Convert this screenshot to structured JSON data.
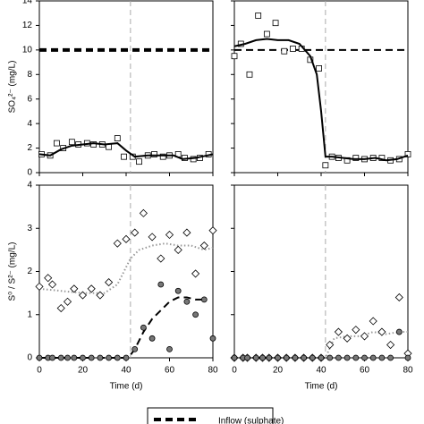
{
  "chart_data": [
    {
      "type": "scatter",
      "xlim": [
        0,
        80
      ],
      "xticks": [
        0,
        20,
        40,
        60,
        80
      ],
      "ylim": [
        0,
        14
      ],
      "yticks": [
        0,
        2,
        4,
        6,
        8,
        10,
        12,
        14
      ],
      "ylabel": "SO₄²⁻ (mg/L)",
      "vline": 42,
      "show_xticklabels": false,
      "show_yticklabels": true,
      "series": [
        {
          "kind": "line",
          "dash": "dashed",
          "color": "#000",
          "name": "Inflow (sulphate)",
          "x": [
            0,
            80
          ],
          "values": [
            10,
            10
          ]
        },
        {
          "kind": "scatter",
          "marker": "square",
          "color": "#fff",
          "x": [
            1,
            5,
            8,
            11,
            15,
            18,
            22,
            25,
            29,
            32,
            36,
            39,
            43,
            46,
            50,
            53,
            57,
            60,
            64,
            67,
            71,
            74,
            78
          ],
          "values": [
            1.5,
            1.4,
            2.4,
            2.0,
            2.5,
            2.3,
            2.4,
            2.3,
            2.3,
            2.1,
            2.8,
            1.3,
            1.3,
            0.9,
            1.4,
            1.5,
            1.3,
            1.4,
            1.5,
            1.2,
            1.1,
            1.2,
            1.5
          ]
        },
        {
          "kind": "line",
          "dash": "solid",
          "color": "#000",
          "x": [
            0,
            5,
            10,
            15,
            20,
            25,
            30,
            36,
            40,
            44,
            50,
            56,
            62,
            66,
            72,
            80
          ],
          "values": [
            1.5,
            1.4,
            1.9,
            2.2,
            2.3,
            2.4,
            2.3,
            2.4,
            1.8,
            1.3,
            1.4,
            1.4,
            1.4,
            1.1,
            1.2,
            1.5
          ]
        }
      ]
    },
    {
      "type": "scatter",
      "xlim": [
        0,
        80
      ],
      "xticks": [
        0,
        20,
        40,
        60,
        80
      ],
      "ylim": [
        0,
        14
      ],
      "yticks": [
        0,
        2,
        4,
        6,
        8,
        10,
        12,
        14
      ],
      "vline": 42,
      "show_xticklabels": false,
      "show_yticklabels": false,
      "series": [
        {
          "kind": "line",
          "dash": "dashed",
          "color": "#000",
          "x": [
            0,
            80
          ],
          "values": [
            10,
            10
          ]
        },
        {
          "kind": "scatter",
          "marker": "square",
          "color": "#fff",
          "x": [
            0,
            3,
            7,
            11,
            15,
            19,
            23,
            27,
            31,
            35,
            39,
            42,
            45,
            48,
            52,
            56,
            60,
            64,
            68,
            72,
            76,
            80
          ],
          "values": [
            9.5,
            10.5,
            8.0,
            12.8,
            11.3,
            12.2,
            9.9,
            10.1,
            10.1,
            9.2,
            8.5,
            0.6,
            1.3,
            1.2,
            1.0,
            1.2,
            1.1,
            1.2,
            1.2,
            1.0,
            1.1,
            1.5
          ]
        },
        {
          "kind": "line",
          "dash": "solid",
          "color": "#000",
          "x": [
            0,
            5,
            10,
            15,
            20,
            25,
            30,
            35,
            38,
            40,
            42,
            45,
            50,
            55,
            60,
            65,
            70,
            75,
            80
          ],
          "values": [
            10.3,
            10.5,
            10.8,
            10.9,
            10.8,
            10.8,
            10.5,
            9.5,
            8.0,
            5.0,
            1.3,
            1.3,
            1.2,
            1.1,
            1.1,
            1.2,
            1.0,
            1.1,
            1.4
          ]
        }
      ]
    },
    {
      "type": "scatter",
      "xlim": [
        0,
        80
      ],
      "xticks": [
        0,
        20,
        40,
        60,
        80
      ],
      "ylim": [
        0,
        4
      ],
      "yticks": [
        0,
        1,
        2,
        3,
        4
      ],
      "ylabel": "S⁰ / S²⁻ (mg/L)",
      "xlabel": "Time (d)",
      "vline": 42,
      "show_xticklabels": true,
      "show_yticklabels": true,
      "series": [
        {
          "kind": "line",
          "dash": "dotted",
          "color": "#999",
          "x": [
            0,
            10,
            20,
            30,
            36,
            42,
            46,
            52,
            58,
            64,
            70,
            76,
            80
          ],
          "values": [
            1.6,
            1.55,
            1.5,
            1.5,
            1.7,
            2.3,
            2.5,
            2.6,
            2.65,
            2.6,
            2.6,
            2.5,
            2.55
          ]
        },
        {
          "kind": "scatter",
          "marker": "diamond",
          "color": "#fff",
          "x": [
            0,
            4,
            6,
            10,
            13,
            16,
            20,
            24,
            28,
            32,
            36,
            40,
            44,
            48,
            52,
            56,
            60,
            64,
            68,
            72,
            76,
            80
          ],
          "values": [
            1.65,
            1.85,
            1.7,
            1.15,
            1.3,
            1.6,
            1.45,
            1.6,
            1.45,
            1.75,
            2.65,
            2.75,
            2.9,
            3.35,
            2.8,
            2.3,
            2.85,
            2.5,
            2.9,
            1.95,
            2.6,
            2.95
          ]
        },
        {
          "kind": "line",
          "dash": "dashed",
          "color": "#000",
          "x": [
            0,
            41,
            44,
            48,
            52,
            56,
            60,
            64,
            68,
            72,
            76
          ],
          "values": [
            0,
            0,
            0.2,
            0.6,
            0.9,
            1.1,
            1.3,
            1.4,
            1.4,
            1.35,
            1.35
          ]
        },
        {
          "kind": "scatter",
          "marker": "circle",
          "color": "#777",
          "x": [
            0,
            4,
            6,
            10,
            13,
            16,
            20,
            24,
            28,
            32,
            36,
            40,
            44,
            48,
            52,
            56,
            60,
            64,
            68,
            72,
            76,
            80
          ],
          "values": [
            0,
            0,
            0,
            0,
            0,
            0,
            0,
            0,
            0,
            0,
            0,
            0,
            0.2,
            0.7,
            0.45,
            1.7,
            0.2,
            1.55,
            1.3,
            1.0,
            1.35,
            0.45
          ]
        }
      ]
    },
    {
      "type": "scatter",
      "xlim": [
        0,
        80
      ],
      "xticks": [
        0,
        20,
        40,
        60,
        80
      ],
      "ylim": [
        0,
        4
      ],
      "yticks": [
        0,
        1,
        2,
        3,
        4
      ],
      "xlabel": "Time (d)",
      "vline": 42,
      "show_xticklabels": true,
      "show_yticklabels": false,
      "series": [
        {
          "kind": "line",
          "dash": "dotted",
          "color": "#999",
          "x": [
            0,
            42,
            46,
            52,
            58,
            64,
            70,
            76,
            80
          ],
          "values": [
            0,
            0,
            0.45,
            0.5,
            0.5,
            0.6,
            0.55,
            0.6,
            0.6
          ]
        },
        {
          "kind": "scatter",
          "marker": "diamond",
          "color": "#fff",
          "x": [
            0,
            4,
            6,
            10,
            13,
            16,
            20,
            24,
            28,
            32,
            36,
            40,
            44,
            48,
            52,
            56,
            60,
            64,
            68,
            72,
            76,
            80
          ],
          "values": [
            0,
            0,
            0,
            0,
            0,
            0,
            0,
            0,
            0,
            0,
            0,
            0,
            0.3,
            0.6,
            0.45,
            0.65,
            0.5,
            0.85,
            0.6,
            0.3,
            1.4,
            0.1
          ]
        },
        {
          "kind": "scatter",
          "marker": "circle",
          "color": "#777",
          "x": [
            0,
            4,
            6,
            10,
            13,
            16,
            20,
            24,
            28,
            32,
            36,
            40,
            44,
            48,
            52,
            56,
            60,
            64,
            68,
            72,
            76,
            80
          ],
          "values": [
            0,
            0,
            0,
            0,
            0,
            0,
            0,
            0,
            0,
            0,
            0,
            0,
            0,
            0,
            0,
            0,
            0,
            0,
            0,
            0,
            0.6,
            0
          ]
        }
      ]
    }
  ]
}
